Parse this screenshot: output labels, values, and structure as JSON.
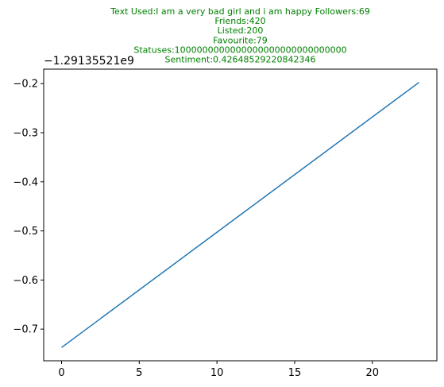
{
  "chart_data": {
    "type": "line",
    "title_lines": [
      "Text Used:I am a very bad girl and i am happy Followers:69",
      "Friends:420",
      "Listed:200",
      "Favourite:79",
      "Statuses:1000000000000000000000000000000",
      "Sentiment:0.42648529220842346"
    ],
    "title_color": "#008000",
    "y_offset_label": "−1.29135521e9",
    "series": [
      {
        "x": [
          0,
          23
        ],
        "y": [
          -0.7375,
          -0.1975
        ],
        "color": "#1f77b4"
      }
    ],
    "xlim": [
      -1.15,
      24.15
    ],
    "ylim": [
      -0.7645,
      -0.1705
    ],
    "x_ticks": [
      0,
      5,
      10,
      15,
      20
    ],
    "x_tick_labels": [
      "0",
      "5",
      "10",
      "15",
      "20"
    ],
    "y_ticks": [
      -0.7,
      -0.6,
      -0.5,
      -0.4,
      -0.3,
      -0.2
    ],
    "y_tick_labels": [
      "−0.7",
      "−0.6",
      "−0.5",
      "−0.4",
      "−0.3",
      "−0.2"
    ],
    "grid": false,
    "xlabel": "",
    "ylabel": ""
  }
}
